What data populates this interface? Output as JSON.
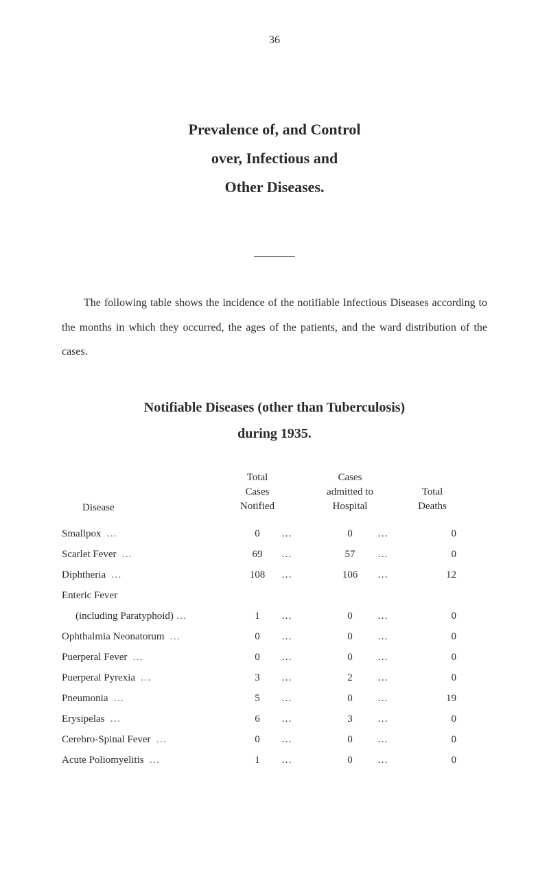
{
  "page_number": "36",
  "title": {
    "line1": "Prevalence of, and Control",
    "line2": "over, Infectious and",
    "line3": "Other Diseases."
  },
  "paragraph": "The following table shows the incidence of the notifiable Infectious Diseases according to the months in which they occurred, the ages of the patients, and the ward distribution of the cases.",
  "subtitle": {
    "line1": "Notifiable Diseases (other than Tuberculosis)",
    "line2": "during 1935."
  },
  "table": {
    "headers": {
      "disease": "Disease",
      "total_cases_l1": "Total",
      "total_cases_l2": "Cases",
      "total_cases_l3": "Notified",
      "admitted_l1": "Cases",
      "admitted_l2": "admitted to",
      "admitted_l3": "Hospital",
      "deaths_l1": "Total",
      "deaths_l2": "Deaths"
    },
    "rows": [
      {
        "disease": "Smallpox",
        "notified": "0",
        "admitted": "0",
        "deaths": "0"
      },
      {
        "disease": "Scarlet Fever",
        "notified": "69",
        "admitted": "57",
        "deaths": "0"
      },
      {
        "disease": "Diphtheria",
        "notified": "108",
        "admitted": "106",
        "deaths": "12"
      }
    ],
    "enteric_label": "Enteric Fever",
    "enteric_sub": "(including Paratyphoid)",
    "enteric_row": {
      "notified": "1",
      "admitted": "0",
      "deaths": "0"
    },
    "rows2": [
      {
        "disease": "Ophthalmia Neonatorum",
        "notified": "0",
        "admitted": "0",
        "deaths": "0"
      },
      {
        "disease": "Puerperal Fever",
        "notified": "0",
        "admitted": "0",
        "deaths": "0"
      },
      {
        "disease": "Puerperal Pyrexia",
        "notified": "3",
        "admitted": "2",
        "deaths": "0"
      },
      {
        "disease": "Pneumonia",
        "notified": "5",
        "admitted": "0",
        "deaths": "19"
      },
      {
        "disease": "Erysipelas",
        "notified": "6",
        "admitted": "3",
        "deaths": "0"
      },
      {
        "disease": "Cerebro-Spinal Fever",
        "notified": "0",
        "admitted": "0",
        "deaths": "0"
      },
      {
        "disease": "Acute Poliomyelitis",
        "notified": "1",
        "admitted": "0",
        "deaths": "0"
      }
    ]
  },
  "colors": {
    "background": "#ffffff",
    "text": "#2a2a2a"
  }
}
